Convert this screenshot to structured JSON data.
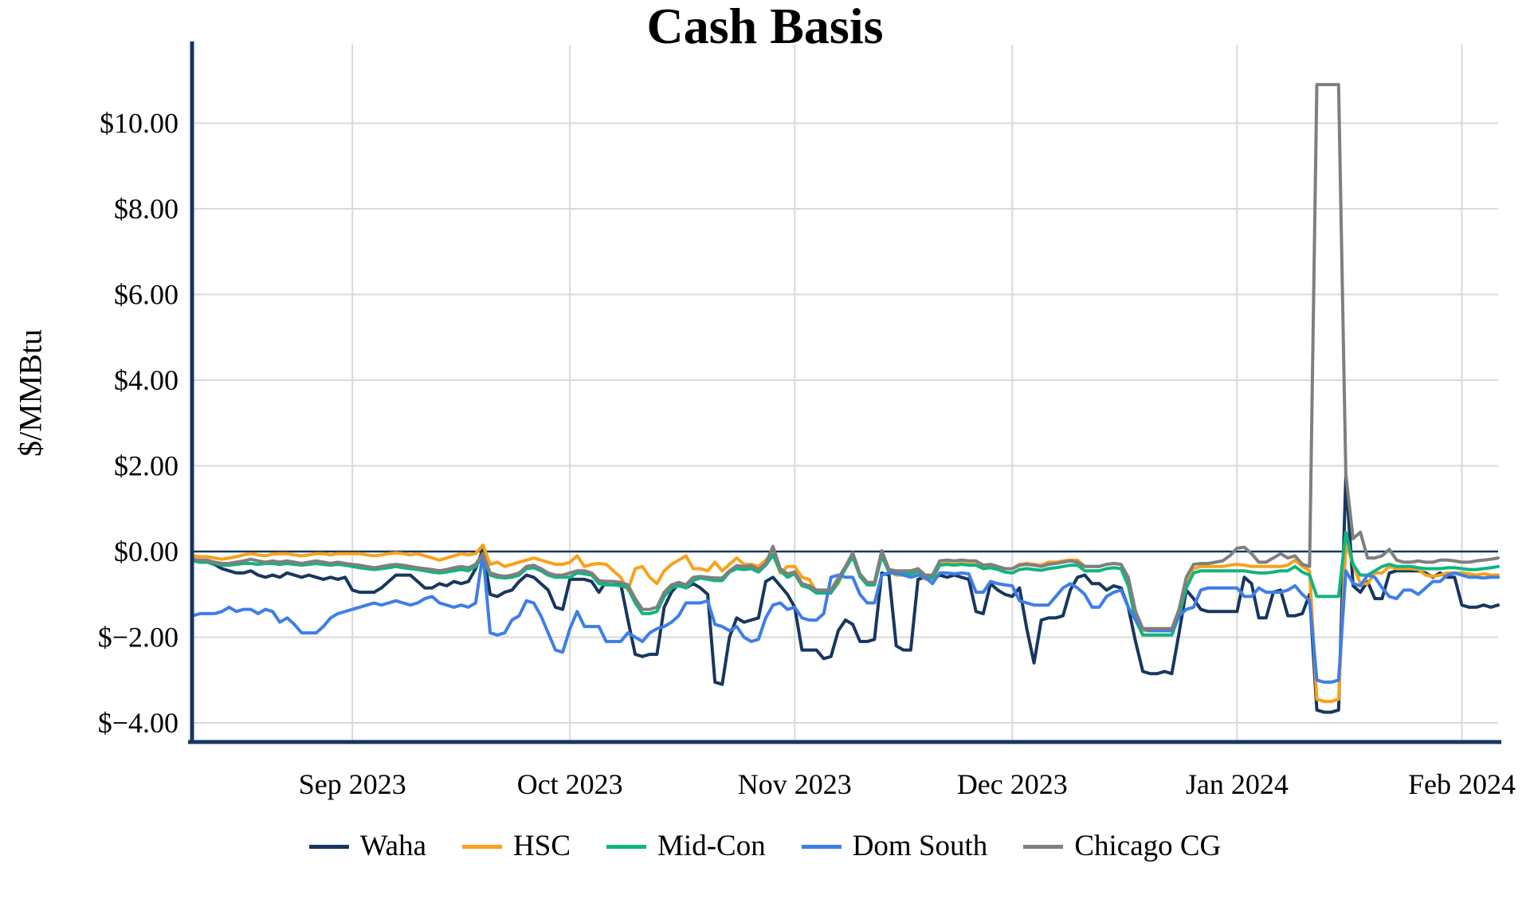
{
  "chart_data": {
    "type": "line",
    "title": "Cash Basis",
    "xlabel": "",
    "ylabel": "$/MMBtu",
    "ylim": [
      -4.45,
      11.85
    ],
    "grid": true,
    "legend_position": "bottom",
    "x_unit": "day",
    "x_start_label": "Aug 2023 (mid)",
    "x_tick_labels": [
      "Sep 2023",
      "Oct 2023",
      "Nov 2023",
      "Dec 2023",
      "Jan 2024",
      "Feb 2024"
    ],
    "x_tick_day_index": [
      22,
      52,
      83,
      113,
      144,
      175
    ],
    "y_ticks": [
      10,
      8,
      6,
      4,
      2,
      0,
      -2,
      -4
    ],
    "y_tick_labels": [
      "$10.00",
      "$8.00",
      "$6.00",
      "$4.00",
      "$2.00",
      "$0.00",
      "$−2.00",
      "$−4.00"
    ],
    "zero_line_color": "#17375E",
    "grid_color": "#D9D9D9",
    "axis_color": "#17375E",
    "series": [
      {
        "name": "Waha",
        "color": "#17375E",
        "values": [
          -0.2,
          -0.25,
          -0.25,
          -0.3,
          -0.4,
          -0.45,
          -0.5,
          -0.5,
          -0.45,
          -0.55,
          -0.6,
          -0.55,
          -0.6,
          -0.5,
          -0.55,
          -0.6,
          -0.55,
          -0.6,
          -0.65,
          -0.6,
          -0.65,
          -0.6,
          -0.9,
          -0.95,
          -0.95,
          -0.95,
          -0.85,
          -0.7,
          -0.55,
          -0.55,
          -0.55,
          -0.7,
          -0.85,
          -0.85,
          -0.75,
          -0.8,
          -0.7,
          -0.75,
          -0.7,
          -0.4,
          0.05,
          -1.0,
          -1.05,
          -0.95,
          -0.9,
          -0.7,
          -0.55,
          -0.6,
          -0.75,
          -0.9,
          -1.3,
          -1.35,
          -0.65,
          -0.65,
          -0.65,
          -0.7,
          -0.95,
          -0.7,
          -0.7,
          -0.75,
          -1.6,
          -2.4,
          -2.45,
          -2.4,
          -2.4,
          -1.3,
          -0.95,
          -0.75,
          -0.85,
          -0.75,
          -0.85,
          -1.0,
          -3.05,
          -3.1,
          -2.0,
          -1.55,
          -1.65,
          -1.6,
          -1.55,
          -0.7,
          -0.6,
          -0.8,
          -1.0,
          -1.3,
          -2.3,
          -2.3,
          -2.3,
          -2.5,
          -2.45,
          -1.85,
          -1.6,
          -1.7,
          -2.1,
          -2.1,
          -2.05,
          -0.5,
          -0.55,
          -2.2,
          -2.3,
          -2.3,
          -0.65,
          -0.6,
          -0.65,
          -0.55,
          -0.6,
          -0.55,
          -0.6,
          -0.65,
          -1.4,
          -1.45,
          -0.75,
          -0.9,
          -1.0,
          -1.05,
          -0.85,
          -1.8,
          -2.6,
          -1.6,
          -1.55,
          -1.55,
          -1.5,
          -0.9,
          -0.6,
          -0.55,
          -0.75,
          -0.75,
          -0.9,
          -0.8,
          -0.85,
          -1.3,
          -2.1,
          -2.8,
          -2.85,
          -2.85,
          -2.8,
          -2.85,
          -1.9,
          -0.9,
          -1.1,
          -1.35,
          -1.4,
          -1.4,
          -1.4,
          -1.4,
          -1.4,
          -0.6,
          -0.75,
          -1.55,
          -1.55,
          -0.95,
          -0.9,
          -1.5,
          -1.5,
          -1.45,
          -1.0,
          -3.7,
          -3.75,
          -3.75,
          -3.7,
          1.75,
          -0.8,
          -0.95,
          -0.7,
          -1.1,
          -1.1,
          -0.5,
          -0.45,
          -0.45,
          -0.45,
          -0.45,
          -0.5,
          -0.6,
          -0.5,
          -0.6,
          -0.6,
          -1.25,
          -1.3,
          -1.3,
          -1.25,
          -1.3,
          -1.25
        ]
      },
      {
        "name": "HSC",
        "color": "#F9A11B",
        "values": [
          -0.1,
          -0.12,
          -0.12,
          -0.15,
          -0.18,
          -0.15,
          -0.12,
          -0.08,
          -0.05,
          -0.08,
          -0.1,
          -0.06,
          -0.05,
          -0.05,
          -0.08,
          -0.1,
          -0.08,
          -0.05,
          -0.05,
          -0.08,
          -0.05,
          -0.05,
          -0.05,
          -0.05,
          -0.08,
          -0.1,
          -0.08,
          -0.05,
          -0.03,
          -0.05,
          -0.08,
          -0.05,
          -0.1,
          -0.15,
          -0.2,
          -0.15,
          -0.1,
          -0.05,
          -0.08,
          -0.05,
          0.15,
          -0.3,
          -0.25,
          -0.35,
          -0.3,
          -0.25,
          -0.2,
          -0.15,
          -0.2,
          -0.25,
          -0.3,
          -0.3,
          -0.25,
          -0.1,
          -0.35,
          -0.3,
          -0.28,
          -0.3,
          -0.45,
          -0.6,
          -0.9,
          -0.4,
          -0.35,
          -0.6,
          -0.75,
          -0.45,
          -0.3,
          -0.2,
          -0.1,
          -0.4,
          -0.4,
          -0.45,
          -0.25,
          -0.45,
          -0.3,
          -0.15,
          -0.3,
          -0.3,
          -0.35,
          -0.2,
          -0.05,
          -0.5,
          -0.35,
          -0.35,
          -0.6,
          -0.65,
          -0.95,
          -0.95,
          -0.95,
          -0.75,
          -0.35,
          -0.12,
          -0.55,
          -0.75,
          -0.75,
          -0.1,
          -0.45,
          -0.55,
          -0.55,
          -0.55,
          -0.5,
          -0.65,
          -0.65,
          -0.3,
          -0.28,
          -0.3,
          -0.28,
          -0.3,
          -0.3,
          -0.35,
          -0.32,
          -0.35,
          -0.4,
          -0.4,
          -0.3,
          -0.28,
          -0.3,
          -0.32,
          -0.25,
          -0.25,
          -0.22,
          -0.2,
          -0.2,
          -0.35,
          -0.35,
          -0.35,
          -0.3,
          -0.28,
          -0.3,
          -0.7,
          -1.5,
          -1.85,
          -1.85,
          -1.85,
          -1.85,
          -1.85,
          -1.4,
          -0.7,
          -0.4,
          -0.35,
          -0.35,
          -0.35,
          -0.35,
          -0.32,
          -0.3,
          -0.32,
          -0.35,
          -0.35,
          -0.35,
          -0.35,
          -0.35,
          -0.32,
          -0.2,
          -0.35,
          -0.45,
          -3.45,
          -3.5,
          -3.5,
          -3.45,
          0.2,
          -0.3,
          -0.75,
          -0.75,
          -0.5,
          -0.5,
          -0.35,
          -0.4,
          -0.4,
          -0.4,
          -0.42,
          -0.55,
          -0.58,
          -0.55,
          -0.5,
          -0.5,
          -0.5,
          -0.52,
          -0.55,
          -0.52,
          -0.55,
          -0.55
        ]
      },
      {
        "name": "Mid-Con",
        "color": "#0FB580",
        "values": [
          -0.22,
          -0.25,
          -0.25,
          -0.28,
          -0.32,
          -0.32,
          -0.3,
          -0.28,
          -0.28,
          -0.3,
          -0.28,
          -0.28,
          -0.3,
          -0.28,
          -0.3,
          -0.32,
          -0.3,
          -0.28,
          -0.3,
          -0.32,
          -0.3,
          -0.32,
          -0.35,
          -0.38,
          -0.4,
          -0.42,
          -0.4,
          -0.38,
          -0.35,
          -0.38,
          -0.4,
          -0.42,
          -0.45,
          -0.48,
          -0.5,
          -0.48,
          -0.45,
          -0.42,
          -0.45,
          -0.35,
          -0.1,
          -0.55,
          -0.6,
          -0.62,
          -0.6,
          -0.55,
          -0.4,
          -0.38,
          -0.45,
          -0.55,
          -0.6,
          -0.6,
          -0.6,
          -0.5,
          -0.52,
          -0.55,
          -0.75,
          -0.78,
          -0.78,
          -0.8,
          -0.85,
          -1.2,
          -1.45,
          -1.45,
          -1.4,
          -1.05,
          -0.85,
          -0.8,
          -0.85,
          -0.68,
          -0.62,
          -0.65,
          -0.68,
          -0.68,
          -0.48,
          -0.4,
          -0.42,
          -0.4,
          -0.48,
          -0.32,
          -0.08,
          -0.45,
          -0.6,
          -0.52,
          -0.8,
          -0.85,
          -0.97,
          -0.97,
          -0.97,
          -0.7,
          -0.4,
          -0.12,
          -0.58,
          -0.78,
          -0.78,
          -0.1,
          -0.48,
          -0.52,
          -0.52,
          -0.52,
          -0.45,
          -0.62,
          -0.62,
          -0.32,
          -0.3,
          -0.32,
          -0.3,
          -0.32,
          -0.32,
          -0.4,
          -0.38,
          -0.42,
          -0.48,
          -0.5,
          -0.42,
          -0.4,
          -0.42,
          -0.44,
          -0.4,
          -0.38,
          -0.35,
          -0.32,
          -0.32,
          -0.45,
          -0.45,
          -0.45,
          -0.4,
          -0.38,
          -0.4,
          -0.8,
          -1.6,
          -1.95,
          -1.95,
          -1.95,
          -1.95,
          -1.95,
          -1.5,
          -0.85,
          -0.5,
          -0.45,
          -0.45,
          -0.45,
          -0.45,
          -0.45,
          -0.45,
          -0.45,
          -0.48,
          -0.5,
          -0.5,
          -0.48,
          -0.45,
          -0.45,
          -0.35,
          -0.48,
          -0.55,
          -1.05,
          -1.05,
          -1.05,
          -1.05,
          0.45,
          -0.3,
          -0.55,
          -0.55,
          -0.45,
          -0.35,
          -0.3,
          -0.35,
          -0.35,
          -0.35,
          -0.38,
          -0.4,
          -0.4,
          -0.4,
          -0.38,
          -0.38,
          -0.4,
          -0.42,
          -0.42,
          -0.4,
          -0.38,
          -0.35
        ]
      },
      {
        "name": "Dom South",
        "color": "#3F7EE8",
        "values": [
          -1.5,
          -1.45,
          -1.45,
          -1.45,
          -1.4,
          -1.3,
          -1.4,
          -1.35,
          -1.35,
          -1.45,
          -1.35,
          -1.4,
          -1.65,
          -1.55,
          -1.7,
          -1.9,
          -1.9,
          -1.9,
          -1.75,
          -1.55,
          -1.45,
          -1.4,
          -1.35,
          -1.3,
          -1.25,
          -1.2,
          -1.25,
          -1.2,
          -1.15,
          -1.2,
          -1.25,
          -1.2,
          -1.1,
          -1.05,
          -1.2,
          -1.25,
          -1.3,
          -1.25,
          -1.3,
          -1.2,
          -0.05,
          -1.9,
          -1.95,
          -1.9,
          -1.6,
          -1.5,
          -1.15,
          -1.2,
          -1.5,
          -1.9,
          -2.3,
          -2.35,
          -1.8,
          -1.4,
          -1.75,
          -1.75,
          -1.75,
          -2.1,
          -2.1,
          -2.1,
          -1.9,
          -2.0,
          -2.1,
          -1.9,
          -1.8,
          -1.75,
          -1.65,
          -1.5,
          -1.2,
          -1.2,
          -1.2,
          -1.15,
          -1.7,
          -1.75,
          -1.85,
          -1.75,
          -2.0,
          -2.1,
          -2.05,
          -1.55,
          -1.25,
          -1.2,
          -1.35,
          -1.3,
          -1.55,
          -1.6,
          -1.6,
          -1.45,
          -0.6,
          -0.55,
          -0.6,
          -0.6,
          -1.0,
          -1.2,
          -1.2,
          -0.55,
          -0.5,
          -0.5,
          -0.55,
          -0.6,
          -0.55,
          -0.6,
          -0.75,
          -0.5,
          -0.5,
          -0.52,
          -0.5,
          -0.52,
          -0.95,
          -0.95,
          -0.7,
          -0.75,
          -0.78,
          -0.8,
          -1.15,
          -1.2,
          -1.25,
          -1.25,
          -1.25,
          -1.05,
          -0.85,
          -0.75,
          -0.85,
          -1.0,
          -1.3,
          -1.3,
          -1.05,
          -0.95,
          -0.9,
          -1.3,
          -1.6,
          -1.8,
          -1.85,
          -1.85,
          -1.85,
          -1.85,
          -1.5,
          -1.35,
          -1.3,
          -0.9,
          -0.85,
          -0.85,
          -0.85,
          -0.85,
          -0.85,
          -1.05,
          -1.05,
          -0.85,
          -0.95,
          -0.95,
          -0.95,
          -0.9,
          -0.8,
          -1.0,
          -1.15,
          -3.0,
          -3.05,
          -3.05,
          -3.0,
          -0.45,
          -0.75,
          -0.8,
          -0.55,
          -0.6,
          -0.85,
          -1.05,
          -1.1,
          -0.9,
          -0.9,
          -1.0,
          -0.85,
          -0.7,
          -0.7,
          -0.55,
          -0.5,
          -0.55,
          -0.6,
          -0.6,
          -0.62,
          -0.6,
          -0.6
        ]
      },
      {
        "name": "Chicago CG",
        "color": "#7F7F7F",
        "values": [
          -0.18,
          -0.2,
          -0.2,
          -0.25,
          -0.28,
          -0.28,
          -0.25,
          -0.22,
          -0.18,
          -0.22,
          -0.25,
          -0.22,
          -0.25,
          -0.22,
          -0.25,
          -0.28,
          -0.25,
          -0.22,
          -0.25,
          -0.28,
          -0.25,
          -0.28,
          -0.3,
          -0.32,
          -0.35,
          -0.38,
          -0.35,
          -0.32,
          -0.3,
          -0.32,
          -0.35,
          -0.38,
          -0.4,
          -0.42,
          -0.45,
          -0.42,
          -0.38,
          -0.35,
          -0.38,
          -0.3,
          -0.05,
          -0.5,
          -0.55,
          -0.58,
          -0.55,
          -0.5,
          -0.35,
          -0.32,
          -0.4,
          -0.5,
          -0.55,
          -0.55,
          -0.5,
          -0.45,
          -0.45,
          -0.5,
          -0.68,
          -0.7,
          -0.7,
          -0.72,
          -0.78,
          -1.1,
          -1.35,
          -1.35,
          -1.3,
          -0.95,
          -0.78,
          -0.72,
          -0.78,
          -0.6,
          -0.58,
          -0.6,
          -0.62,
          -0.62,
          -0.45,
          -0.33,
          -0.35,
          -0.33,
          -0.42,
          -0.28,
          0.12,
          -0.4,
          -0.52,
          -0.48,
          -0.75,
          -0.8,
          -0.9,
          -0.9,
          -0.9,
          -0.62,
          -0.35,
          -0.03,
          -0.52,
          -0.72,
          -0.72,
          0.02,
          -0.42,
          -0.45,
          -0.45,
          -0.45,
          -0.4,
          -0.55,
          -0.55,
          -0.22,
          -0.2,
          -0.22,
          -0.2,
          -0.22,
          -0.22,
          -0.32,
          -0.3,
          -0.35,
          -0.4,
          -0.4,
          -0.32,
          -0.3,
          -0.32,
          -0.35,
          -0.3,
          -0.28,
          -0.25,
          -0.22,
          -0.25,
          -0.35,
          -0.35,
          -0.35,
          -0.3,
          -0.28,
          -0.3,
          -0.6,
          -1.4,
          -1.8,
          -1.8,
          -1.8,
          -1.8,
          -1.8,
          -1.35,
          -0.6,
          -0.3,
          -0.28,
          -0.28,
          -0.25,
          -0.22,
          -0.1,
          0.08,
          0.1,
          -0.05,
          -0.25,
          -0.25,
          -0.15,
          -0.05,
          -0.15,
          -0.1,
          -0.3,
          -0.35,
          10.9,
          10.9,
          10.9,
          10.9,
          1.8,
          0.3,
          0.45,
          -0.15,
          -0.15,
          -0.1,
          0.05,
          -0.2,
          -0.25,
          -0.25,
          -0.22,
          -0.25,
          -0.25,
          -0.2,
          -0.2,
          -0.22,
          -0.25,
          -0.25,
          -0.22,
          -0.2,
          -0.18,
          -0.15
        ]
      }
    ]
  }
}
